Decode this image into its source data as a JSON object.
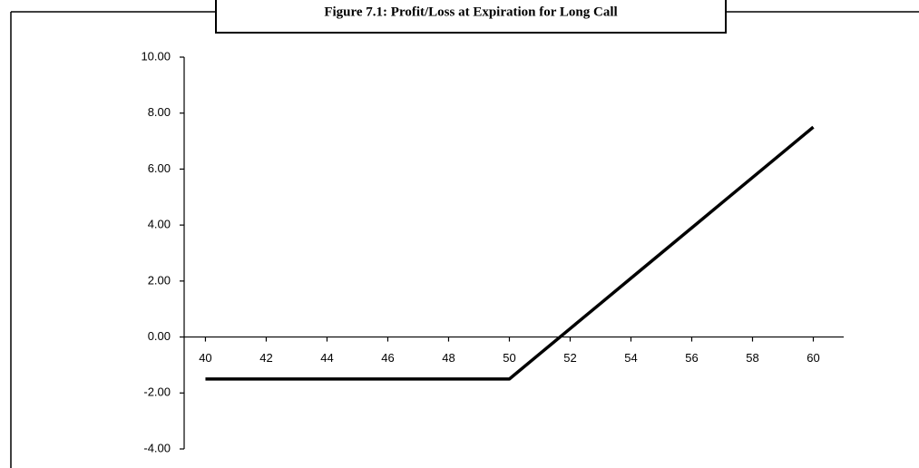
{
  "chart_data": {
    "type": "line",
    "title": "Figure 7.1: Profit/Loss at Expiration for Long Call",
    "x": [
      40,
      41,
      42,
      43,
      44,
      45,
      46,
      47,
      48,
      49,
      50,
      51,
      52,
      53,
      54,
      55,
      56,
      57,
      58,
      59,
      60
    ],
    "series": [
      {
        "name": "Profit/Loss",
        "color": "#000000",
        "values": [
          -1.5,
          -1.5,
          -1.5,
          -1.5,
          -1.5,
          -1.5,
          -1.5,
          -1.5,
          -1.5,
          -1.5,
          -1.5,
          -0.6,
          0.3,
          1.2,
          2.1,
          3.0,
          3.9,
          4.8,
          5.7,
          6.6,
          7.5
        ]
      }
    ],
    "xlim": [
      39.3,
      61
    ],
    "xticks": [
      40,
      42,
      44,
      46,
      48,
      50,
      52,
      54,
      56,
      58,
      60
    ],
    "ylim": [
      -4,
      10
    ],
    "yticks": [
      {
        "value": -4,
        "label": "-4.00"
      },
      {
        "value": -2,
        "label": "-2.00"
      },
      {
        "value": 0,
        "label": "0.00"
      },
      {
        "value": 2,
        "label": "2.00"
      },
      {
        "value": 4,
        "label": "4.00"
      },
      {
        "value": 6,
        "label": "6.00"
      },
      {
        "value": 8,
        "label": "8.00"
      },
      {
        "value": 10,
        "label": "10.00"
      }
    ],
    "grid": false
  }
}
